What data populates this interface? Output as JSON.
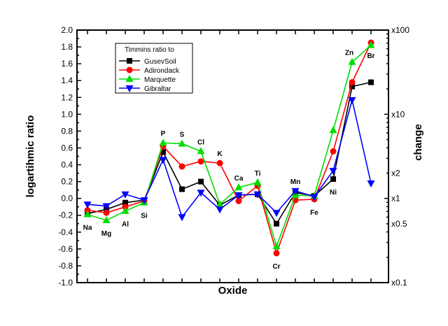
{
  "chart_data": {
    "type": "line",
    "xlabel": "Oxide",
    "ylabel": "logartihmic ratio",
    "y2label": "change",
    "ylim": [
      -1.0,
      2.0
    ],
    "yticks": [
      "-1.0",
      "-0.8",
      "-0.6",
      "-0.4",
      "-0.2",
      "0.0",
      "0.2",
      "0.4",
      "0.6",
      "0.8",
      "1.0",
      "1.2",
      "1.4",
      "1.6",
      "1.8",
      "2.0"
    ],
    "y2ticks": [
      {
        "label": "x100",
        "value": 2.0
      },
      {
        "label": "x10",
        "value": 1.0
      },
      {
        "label": "x2",
        "value": 0.301
      },
      {
        "label": "x1",
        "value": 0.0
      },
      {
        "label": "x0.5",
        "value": -0.301
      },
      {
        "label": "x0.1",
        "value": -1.0
      }
    ],
    "categories": [
      "Na",
      "Mg",
      "Al",
      "Si",
      "P",
      "S",
      "Cl",
      "K",
      "Ca",
      "Ti",
      "Cr",
      "Mn",
      "Fe",
      "Ni",
      "Zn",
      "Br"
    ],
    "legend_title": "Timmins ratio to",
    "legend_position": "top-left",
    "grid": false,
    "series": [
      {
        "name": "GusevSoil",
        "color": "#000000",
        "marker": "square",
        "values": [
          -0.18,
          -0.13,
          -0.05,
          -0.02,
          0.55,
          0.11,
          0.2,
          -0.08,
          0.04,
          0.05,
          -0.3,
          0.07,
          0.03,
          0.23,
          1.33,
          1.38
        ]
      },
      {
        "name": "Adirondack",
        "color": "#ff0000",
        "marker": "circle",
        "values": [
          -0.14,
          -0.17,
          -0.1,
          -0.03,
          0.62,
          0.38,
          0.44,
          0.42,
          -0.03,
          0.15,
          -0.65,
          -0.02,
          -0.01,
          0.56,
          1.38,
          1.85
        ]
      },
      {
        "name": "Marquette",
        "color": "#00dd00",
        "marker": "triangle-up",
        "values": [
          -0.19,
          -0.26,
          -0.15,
          -0.05,
          0.66,
          0.65,
          0.56,
          -0.07,
          0.13,
          0.19,
          -0.57,
          0.04,
          0.03,
          0.81,
          1.62,
          1.82
        ]
      },
      {
        "name": "Gibraltar",
        "color": "#0000ff",
        "marker": "triangle-down",
        "values": [
          -0.07,
          -0.09,
          0.05,
          -0.02,
          0.46,
          -0.22,
          0.07,
          -0.13,
          0.04,
          0.05,
          -0.17,
          0.09,
          0.02,
          0.33,
          1.17,
          0.18
        ]
      }
    ]
  }
}
